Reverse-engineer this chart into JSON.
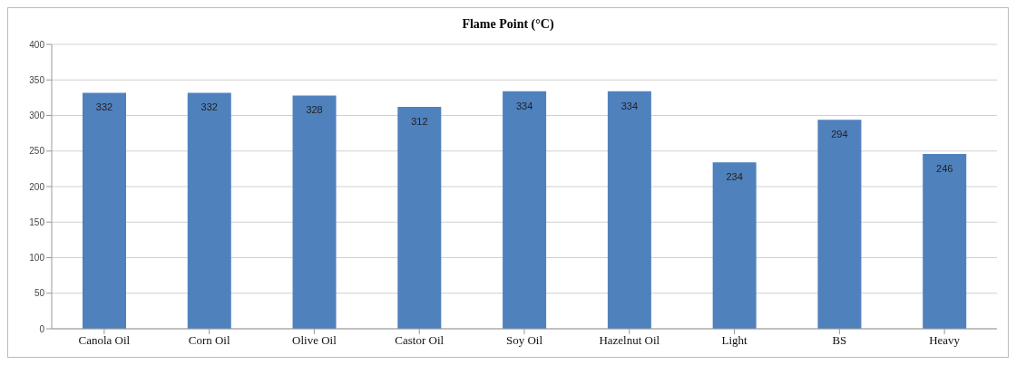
{
  "chart_data": {
    "type": "bar",
    "title": "Flame Point (°C)",
    "categories": [
      "Canola Oil",
      "Corn Oil",
      "Olive Oil",
      "Castor Oil",
      "Soy Oil",
      "Hazelnut Oil",
      "Light",
      "BS",
      "Heavy"
    ],
    "values": [
      332,
      332,
      328,
      312,
      334,
      334,
      234,
      294,
      246
    ],
    "color": "#4f81bd",
    "ylim": [
      0,
      400
    ],
    "yticks": [
      0,
      50,
      100,
      150,
      200,
      250,
      300,
      350,
      400
    ],
    "grid": "y",
    "data_labels": true
  }
}
